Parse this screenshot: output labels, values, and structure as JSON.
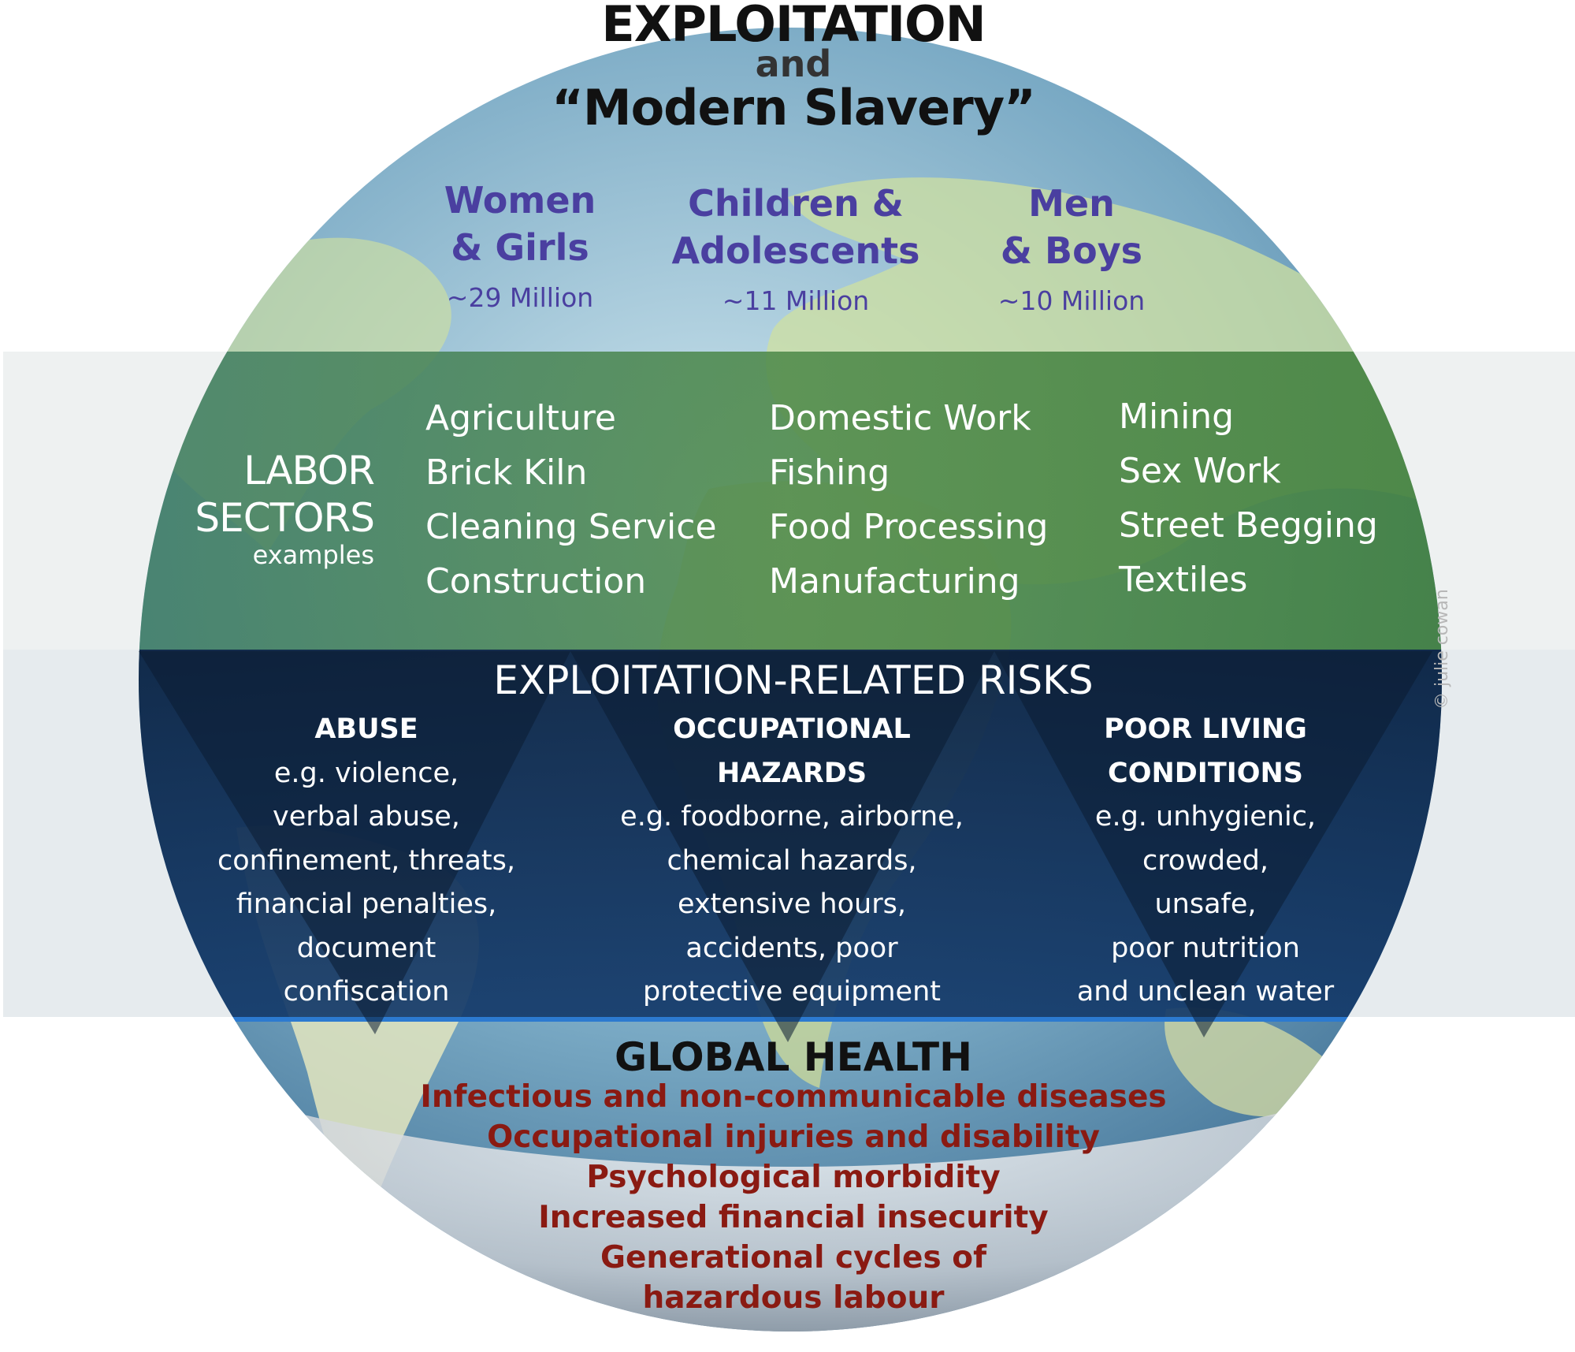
{
  "title": {
    "main": "EXPLOITATION",
    "connector": "and",
    "subtitle": "“Modern Slavery”"
  },
  "populations": [
    {
      "line1": "Women",
      "line2": "& Girls",
      "count": "~29 Million"
    },
    {
      "line1": "Children &",
      "line2": "Adolescents",
      "count": "~11 Million"
    },
    {
      "line1": "Men",
      "line2": "& Boys",
      "count": "~10 Million"
    }
  ],
  "labor_sectors": {
    "title_line1": "LABOR",
    "title_line2": "SECTORS",
    "caption": "examples",
    "columns": [
      [
        "Agriculture",
        "Brick Kiln",
        "Cleaning Service",
        "Construction"
      ],
      [
        "Domestic Work",
        "Fishing",
        "Food Processing",
        "Manufacturing"
      ],
      [
        "Mining",
        "Sex Work",
        "Street Begging",
        "Textiles"
      ]
    ]
  },
  "risks": {
    "heading": "EXPLOITATION-RELATED RISKS",
    "categories": [
      {
        "title": [
          "ABUSE"
        ],
        "examples": [
          "e.g. violence,",
          "verbal abuse,",
          "confinement, threats,",
          "financial penalties,",
          "document",
          "confiscation"
        ]
      },
      {
        "title": [
          "OCCUPATIONAL",
          "HAZARDS"
        ],
        "examples": [
          "e.g. foodborne, airborne,",
          "chemical hazards,",
          "extensive hours,",
          "accidents, poor",
          "protective equipment"
        ]
      },
      {
        "title": [
          "POOR LIVING",
          "CONDITIONS"
        ],
        "examples": [
          "e.g. unhygienic,",
          "crowded,",
          "unsafe,",
          "poor nutrition",
          "and unclean water"
        ]
      }
    ]
  },
  "global_health": {
    "title": "GLOBAL HEALTH",
    "outcomes": [
      "Infectious and non-communicable diseases",
      "Occupational injuries and disability",
      "Psychological morbidity",
      "Increased financial insecurity",
      "Generational cycles of",
      "hazardous labour"
    ]
  },
  "credit": "© julie cowan",
  "colors": {
    "population_text": "#4a3fa0",
    "health_outcome_text": "#8a1a12",
    "sector_band": "#3f7f4a",
    "risk_band": "#0d2c55"
  }
}
